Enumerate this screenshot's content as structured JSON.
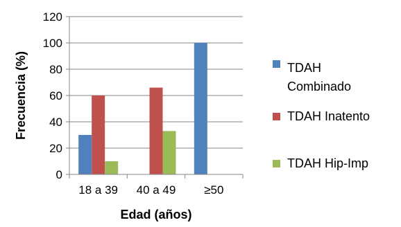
{
  "chart_data": {
    "type": "bar",
    "xlabel": "Edad (años)",
    "ylabel": "Frecuencia (%)",
    "categories": [
      "18 a 39",
      "40 a 49",
      "≥50"
    ],
    "ylim": [
      0,
      120
    ],
    "yticks": [
      0,
      20,
      40,
      60,
      80,
      100,
      120
    ],
    "grid": "horizontal",
    "legend_position": "right",
    "series": [
      {
        "name": "TDAH Combinado",
        "legend_lines": [
          "TDAH",
          "Combinado"
        ],
        "color": "#4F81BD",
        "values": [
          30,
          0,
          100
        ]
      },
      {
        "name": "TDAH Inatento",
        "legend_lines": [
          "TDAH Inatento"
        ],
        "color": "#C0504D",
        "values": [
          60,
          66,
          0
        ]
      },
      {
        "name": "TDAH Hip-Imp",
        "legend_lines": [
          "TDAH Hip-Imp"
        ],
        "color": "#9BBB59",
        "values": [
          10,
          33,
          0
        ]
      }
    ]
  }
}
